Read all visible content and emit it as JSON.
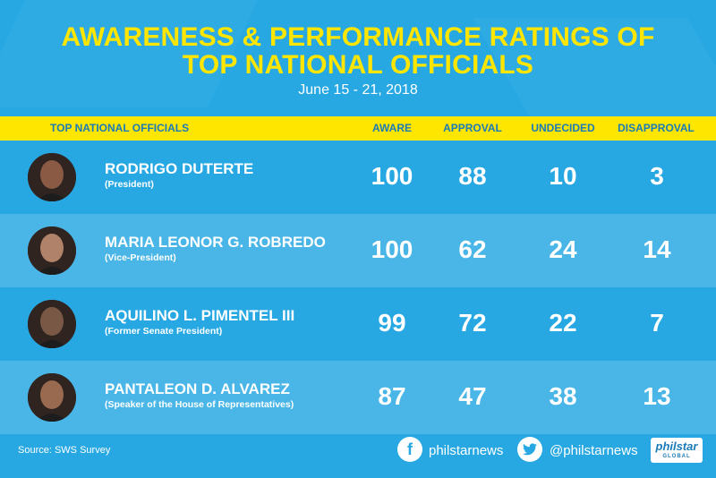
{
  "title_line1": "AWARENESS & PERFORMANCE RATINGS OF",
  "title_line2": "TOP NATIONAL OFFICIALS",
  "date": "June 15 - 21, 2018",
  "headers": {
    "officials": "TOP NATIONAL OFFICIALS",
    "aware": "AWARE",
    "approval": "APPROVAL",
    "undecided": "UNDECIDED",
    "disapproval": "DISAPPROVAL"
  },
  "chart_data": {
    "type": "table",
    "title": "AWARENESS & PERFORMANCE RATINGS OF TOP NATIONAL OFFICIALS",
    "subtitle": "June 15 - 21, 2018",
    "columns": [
      "TOP NATIONAL OFFICIALS",
      "AWARE",
      "APPROVAL",
      "UNDECIDED",
      "DISAPPROVAL"
    ],
    "rows": [
      {
        "name": "RODRIGO DUTERTE",
        "role": "(President)",
        "aware": 100,
        "approval": 88,
        "undecided": 10,
        "disapproval": 3
      },
      {
        "name": "MARIA LEONOR G. ROBREDO",
        "role": "(Vice-President)",
        "aware": 100,
        "approval": 62,
        "undecided": 24,
        "disapproval": 14
      },
      {
        "name": "AQUILINO L. PIMENTEL III",
        "role": "(Former Senate President)",
        "aware": 99,
        "approval": 72,
        "undecided": 22,
        "disapproval": 7
      },
      {
        "name": "PANTALEON D. ALVAREZ",
        "role": "(Speaker of the House of Representatives)",
        "aware": 87,
        "approval": 47,
        "undecided": 38,
        "disapproval": 13
      }
    ]
  },
  "footer": {
    "source": "Source: SWS Survey",
    "facebook": "philstarnews",
    "twitter": "@philstarnews",
    "logo_line1": "philstar",
    "logo_line2": "GLOBAL"
  },
  "colors": {
    "background": "#27a8e3",
    "accent_yellow": "#ffe600",
    "header_text": "#1b7ab8"
  }
}
